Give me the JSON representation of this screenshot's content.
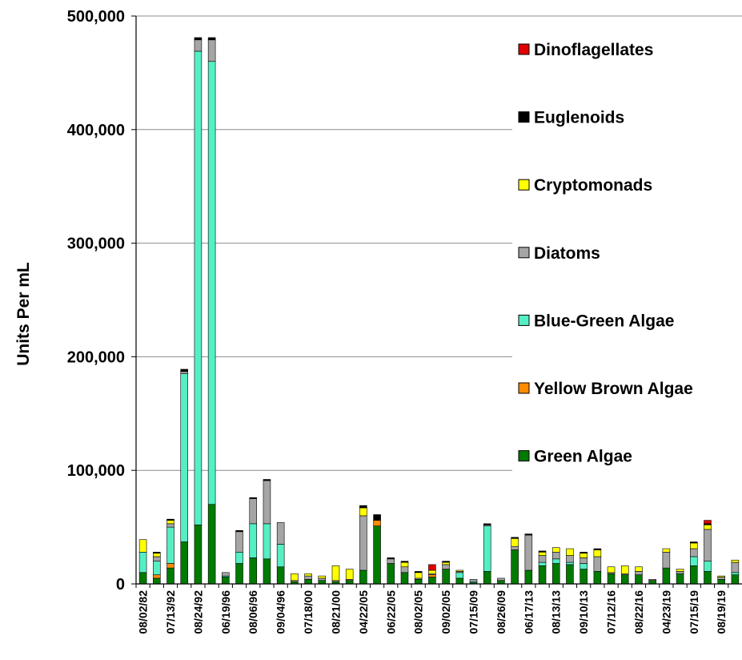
{
  "chart_data": {
    "type": "bar",
    "stacked": true,
    "ylabel": "Units Per mL",
    "ylim": [
      0,
      500000
    ],
    "yticks": [
      0,
      100000,
      200000,
      300000,
      400000,
      500000
    ],
    "ytick_labels": [
      "0",
      "100,000",
      "200,000",
      "300,000",
      "400,000",
      "500,000"
    ],
    "grid": true,
    "legend_position": "right",
    "visible_x_labels": [
      "08/02/82",
      "07/13/92",
      "08/24/92",
      "06/19/96",
      "08/06/96",
      "09/04/96",
      "07/18/00",
      "08/21/00",
      "04/22/05",
      "06/22/05",
      "08/02/05",
      "09/02/05",
      "07/15/09",
      "08/26/09",
      "06/17/13",
      "08/13/13",
      "09/10/13",
      "07/12/16",
      "08/22/16",
      "04/23/19",
      "07/15/19",
      "08/19/19"
    ],
    "categories": [
      "08/02/82",
      "",
      "07/13/92",
      "",
      "08/24/92",
      "",
      "06/19/96",
      "",
      "08/06/96",
      "",
      "09/04/96",
      "",
      "07/18/00",
      "",
      "08/21/00",
      "",
      "04/22/05",
      "",
      "06/22/05",
      "",
      "08/02/05",
      "",
      "09/02/05",
      "",
      "07/15/09",
      "",
      "08/26/09",
      "",
      "06/17/13",
      "",
      "08/13/13",
      "",
      "09/10/13",
      "",
      "07/12/16",
      "",
      "08/22/16",
      "",
      "04/23/19",
      "",
      "07/15/19",
      "",
      "08/19/19",
      ""
    ],
    "series": [
      {
        "name": "Green Algae",
        "color": "#007a00",
        "values": [
          10000,
          5000,
          14000,
          37000,
          52000,
          70000,
          6000,
          18000,
          23000,
          22000,
          15000,
          2000,
          4000,
          3000,
          2000,
          3000,
          12000,
          51000,
          18000,
          10000,
          4000,
          6000,
          13000,
          5000,
          1000,
          11000,
          3000,
          30000,
          12000,
          16000,
          18000,
          17000,
          13000,
          11000,
          9000,
          8000,
          8000,
          3000,
          14000,
          9000,
          16000,
          11000,
          4000,
          8000
        ]
      },
      {
        "name": "Yellow Brown Algae",
        "color": "#ff8c00",
        "values": [
          0,
          3000,
          4000,
          0,
          0,
          0,
          0,
          0,
          0,
          0,
          0,
          0,
          0,
          0,
          0,
          0,
          0,
          5000,
          0,
          0,
          0,
          2000,
          0,
          0,
          0,
          0,
          0,
          0,
          0,
          0,
          0,
          0,
          0,
          0,
          0,
          0,
          0,
          0,
          0,
          0,
          0,
          0,
          0,
          0
        ]
      },
      {
        "name": "Blue-Green Algae",
        "color": "#55efc4",
        "values": [
          18000,
          12000,
          32000,
          148000,
          417000,
          390000,
          1000,
          10000,
          30000,
          31000,
          20000,
          0,
          0,
          0,
          0,
          0,
          0,
          0,
          0,
          0,
          0,
          0,
          0,
          5000,
          1000,
          40000,
          0,
          0,
          0,
          3000,
          4000,
          2000,
          5000,
          0,
          0,
          0,
          0,
          0,
          0,
          0,
          8000,
          9000,
          0,
          2000
        ]
      },
      {
        "name": "Diatoms",
        "color": "#a5a5a5",
        "values": [
          0,
          4000,
          3000,
          2000,
          10000,
          19000,
          3000,
          18000,
          22000,
          38000,
          19000,
          1000,
          3000,
          2000,
          1000,
          1000,
          48000,
          0,
          4000,
          5000,
          1000,
          1000,
          4000,
          1000,
          2000,
          1000,
          2000,
          3000,
          31000,
          6000,
          6000,
          6000,
          5000,
          13000,
          1000,
          1000,
          3000,
          1000,
          14000,
          2000,
          7000,
          28000,
          2000,
          9000
        ]
      },
      {
        "name": "Cryptomonads",
        "color": "#ffff00",
        "values": [
          11000,
          3000,
          3000,
          0,
          0,
          0,
          0,
          0,
          0,
          0,
          0,
          6000,
          2000,
          2000,
          13000,
          9000,
          7000,
          0,
          0,
          4000,
          5000,
          3000,
          2000,
          1000,
          0,
          0,
          0,
          7000,
          0,
          3000,
          4000,
          6000,
          4000,
          6000,
          5000,
          7000,
          4000,
          0,
          3000,
          2000,
          5000,
          4000,
          1000,
          2000
        ]
      },
      {
        "name": "Euglenoids",
        "color": "#000000",
        "values": [
          0,
          1000,
          1000,
          2000,
          2000,
          2000,
          0,
          1000,
          1000,
          1000,
          0,
          0,
          0,
          0,
          0,
          0,
          2000,
          5000,
          1000,
          1000,
          1000,
          0,
          1000,
          0,
          0,
          1000,
          0,
          1000,
          1000,
          1000,
          0,
          0,
          1000,
          1000,
          0,
          0,
          0,
          0,
          0,
          0,
          1000,
          1000,
          0,
          0
        ]
      },
      {
        "name": "Dinoflagellates",
        "color": "#e00000",
        "values": [
          0,
          0,
          0,
          0,
          0,
          0,
          0,
          0,
          0,
          0,
          0,
          0,
          0,
          0,
          0,
          0,
          0,
          0,
          0,
          0,
          0,
          5000,
          0,
          0,
          0,
          0,
          0,
          0,
          0,
          0,
          0,
          0,
          0,
          0,
          0,
          0,
          0,
          0,
          0,
          0,
          0,
          3000,
          0,
          0
        ]
      }
    ],
    "legend": [
      "Dinoflagellates",
      "Euglenoids",
      "Cryptomonads",
      "Diatoms",
      "Blue-Green Algae",
      "Yellow Brown Algae",
      "Green Algae"
    ]
  }
}
